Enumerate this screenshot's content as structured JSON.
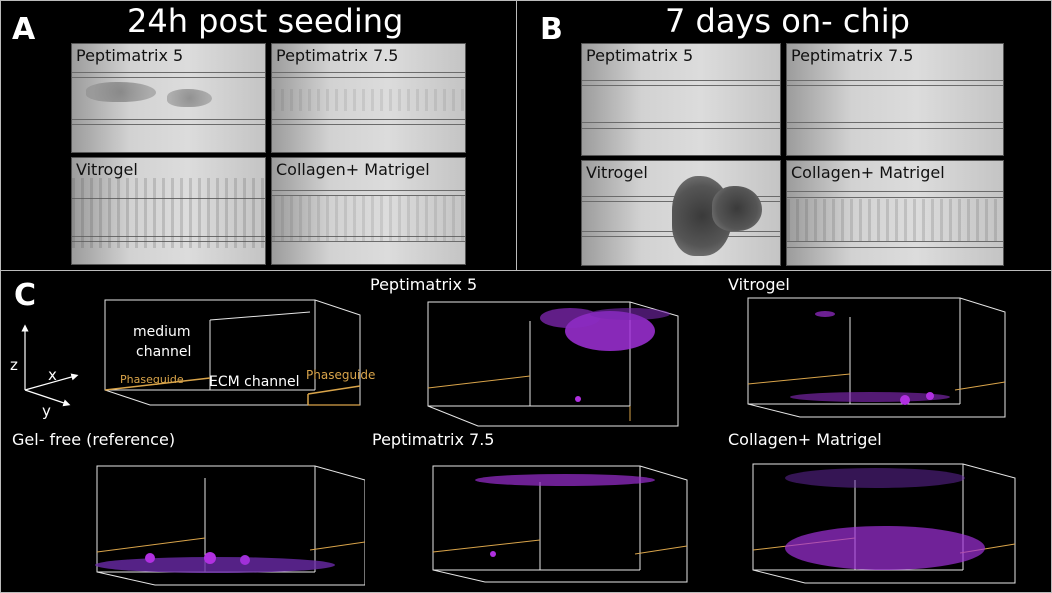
{
  "panel_a": {
    "letter": "A",
    "title": "24h post seeding",
    "images": [
      "Peptimatrix 5",
      "Peptimatrix 7.5",
      "Vitrogel",
      "Collagen+ Matrigel"
    ]
  },
  "panel_b": {
    "letter": "B",
    "title": "7 days on- chip",
    "images": [
      "Peptimatrix 5",
      "Peptimatrix 7.5",
      "Vitrogel",
      "Collagen+ Matrigel"
    ]
  },
  "panel_c": {
    "letter": "C",
    "schematic": {
      "medium_line1": "medium",
      "medium_line2": "channel",
      "phaseguide_left": "Phaseguide",
      "ecm_channel": "ECM channel",
      "phaseguide_right": "Phaseguide",
      "axis_z": "z",
      "axis_x": "x",
      "axis_y": "y"
    },
    "renders": [
      "Peptimatrix 5",
      "Vitrogel",
      "Gel- free (reference)",
      "Peptimatrix 7.5",
      "Collagen+ Matrigel"
    ]
  },
  "colors": {
    "background": "#000000",
    "phaseguide": "#d9a44a",
    "fluorescence": "#b030e0"
  }
}
